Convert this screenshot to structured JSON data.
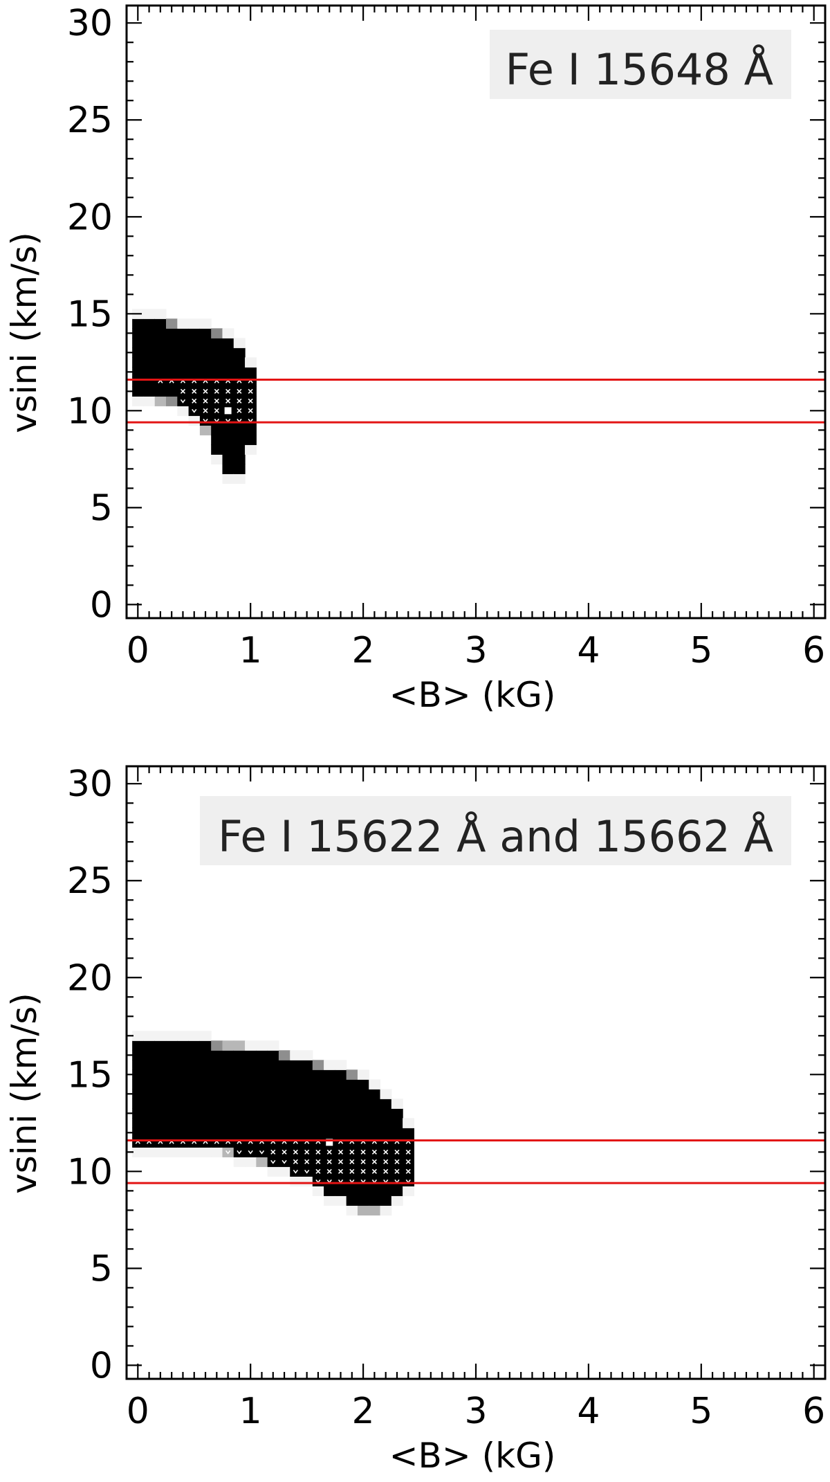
{
  "chart_data": [
    {
      "type": "heatmap",
      "annotation": "Fe I 15648 Å",
      "xlabel": "<B> (kG)",
      "ylabel": "vsini (km/s)",
      "xlim": [
        -0.1,
        6.1
      ],
      "ylim": [
        -0.7,
        30.9
      ],
      "xticks": [
        0,
        1,
        2,
        3,
        4,
        5,
        6
      ],
      "yticks": [
        0,
        5,
        10,
        15,
        20,
        25,
        30
      ],
      "grid": false,
      "cell_size": {
        "dB": 0.1,
        "dv": 0.5
      },
      "reference_lines_vsini": [
        9.4,
        11.6
      ],
      "best_fit": {
        "B": 0.8,
        "vsini": 10.0
      },
      "probability_region": {
        "columns": [
          {
            "B": 0.0,
            "vmin": 11.0,
            "vmax": 14.5,
            "edge": 0.85
          },
          {
            "B": 0.1,
            "vmin": 11.0,
            "vmax": 14.5,
            "edge": 0.85
          },
          {
            "B": 0.2,
            "vmin": 10.8,
            "vmax": 14.5,
            "edge": 0.85
          },
          {
            "B": 0.3,
            "vmin": 10.7,
            "vmax": 14.3,
            "edge": 0.85
          },
          {
            "B": 0.4,
            "vmin": 10.5,
            "vmax": 14.0,
            "edge": 0.85
          },
          {
            "B": 0.5,
            "vmin": 10.0,
            "vmax": 14.0,
            "edge": 0.85
          },
          {
            "B": 0.6,
            "vmin": 9.3,
            "vmax": 14.0,
            "edge": 0.85
          },
          {
            "B": 0.7,
            "vmin": 8.0,
            "vmax": 13.8,
            "edge": 0.9
          },
          {
            "B": 0.8,
            "vmin": 7.0,
            "vmax": 13.5,
            "edge": 0.9
          },
          {
            "B": 0.9,
            "vmin": 7.0,
            "vmax": 13.0,
            "edge": 0.9
          },
          {
            "B": 1.0,
            "vmin": 8.5,
            "vmax": 12.0,
            "edge": 0.9
          }
        ],
        "halo_extent": 0.1
      },
      "marked_cells": [
        {
          "B": 0.2,
          "vmin": 11.5,
          "vmax": 11.5
        },
        {
          "B": 0.3,
          "vmin": 11.5,
          "vmax": 11.5
        },
        {
          "B": 0.4,
          "vmin": 10.5,
          "vmax": 11.5
        },
        {
          "B": 0.5,
          "vmin": 10.0,
          "vmax": 11.5
        },
        {
          "B": 0.6,
          "vmin": 9.5,
          "vmax": 11.5
        },
        {
          "B": 0.7,
          "vmin": 9.5,
          "vmax": 11.5
        },
        {
          "B": 0.8,
          "vmin": 9.5,
          "vmax": 11.5
        },
        {
          "B": 0.9,
          "vmin": 9.5,
          "vmax": 11.5
        },
        {
          "B": 1.0,
          "vmin": 9.5,
          "vmax": 11.5
        }
      ]
    },
    {
      "type": "heatmap",
      "annotation": "Fe I 15622 Å and 15662 Å",
      "xlabel": "<B> (kG)",
      "ylabel": "vsini (km/s)",
      "xlim": [
        -0.1,
        6.1
      ],
      "ylim": [
        -0.7,
        30.9
      ],
      "xticks": [
        0,
        1,
        2,
        3,
        4,
        5,
        6
      ],
      "yticks": [
        0,
        5,
        10,
        15,
        20,
        25,
        30
      ],
      "grid": false,
      "cell_size": {
        "dB": 0.1,
        "dv": 0.5
      },
      "reference_lines_vsini": [
        9.4,
        11.6
      ],
      "best_fit": {
        "B": 1.7,
        "vsini": 11.5
      },
      "probability_region": {
        "columns": [
          {
            "B": 0.0,
            "vmin": 11.5,
            "vmax": 16.5,
            "edge": 0.85
          },
          {
            "B": 0.1,
            "vmin": 11.5,
            "vmax": 16.5,
            "edge": 0.85
          },
          {
            "B": 0.2,
            "vmin": 11.5,
            "vmax": 16.5,
            "edge": 0.85
          },
          {
            "B": 0.3,
            "vmin": 11.5,
            "vmax": 16.5,
            "edge": 0.85
          },
          {
            "B": 0.4,
            "vmin": 11.5,
            "vmax": 16.5,
            "edge": 0.85
          },
          {
            "B": 0.5,
            "vmin": 11.5,
            "vmax": 16.5,
            "edge": 0.85
          },
          {
            "B": 0.6,
            "vmin": 11.5,
            "vmax": 16.5,
            "edge": 0.85
          },
          {
            "B": 0.7,
            "vmin": 11.5,
            "vmax": 16.3,
            "edge": 0.85
          },
          {
            "B": 0.8,
            "vmin": 11.3,
            "vmax": 16.2,
            "edge": 0.85
          },
          {
            "B": 0.9,
            "vmin": 11.0,
            "vmax": 16.2,
            "edge": 0.85
          },
          {
            "B": 1.0,
            "vmin": 11.0,
            "vmax": 16.0,
            "edge": 0.85
          },
          {
            "B": 1.1,
            "vmin": 10.8,
            "vmax": 16.0,
            "edge": 0.85
          },
          {
            "B": 1.2,
            "vmin": 10.5,
            "vmax": 16.0,
            "edge": 0.85
          },
          {
            "B": 1.3,
            "vmin": 10.5,
            "vmax": 15.8,
            "edge": 0.85
          },
          {
            "B": 1.4,
            "vmin": 10.0,
            "vmax": 15.5,
            "edge": 0.85
          },
          {
            "B": 1.5,
            "vmin": 10.0,
            "vmax": 15.5,
            "edge": 0.85
          },
          {
            "B": 1.6,
            "vmin": 9.5,
            "vmax": 15.3,
            "edge": 0.85
          },
          {
            "B": 1.7,
            "vmin": 9.0,
            "vmax": 15.0,
            "edge": 0.85
          },
          {
            "B": 1.8,
            "vmin": 9.0,
            "vmax": 15.0,
            "edge": 0.85
          },
          {
            "B": 1.9,
            "vmin": 8.5,
            "vmax": 14.8,
            "edge": 0.85
          },
          {
            "B": 2.0,
            "vmin": 8.3,
            "vmax": 14.5,
            "edge": 0.9
          },
          {
            "B": 2.1,
            "vmin": 8.3,
            "vmax": 14.0,
            "edge": 0.9
          },
          {
            "B": 2.2,
            "vmin": 8.5,
            "vmax": 13.5,
            "edge": 0.9
          },
          {
            "B": 2.3,
            "vmin": 9.0,
            "vmax": 13.0,
            "edge": 0.9
          },
          {
            "B": 2.4,
            "vmin": 9.5,
            "vmax": 12.0,
            "edge": 0.9
          }
        ],
        "halo_extent": 0.1
      },
      "marked_cells": [
        {
          "B": 0.0,
          "vmin": 11.5,
          "vmax": 11.5
        },
        {
          "B": 0.1,
          "vmin": 11.5,
          "vmax": 11.5
        },
        {
          "B": 0.2,
          "vmin": 11.5,
          "vmax": 11.5
        },
        {
          "B": 0.3,
          "vmin": 11.5,
          "vmax": 11.5
        },
        {
          "B": 0.4,
          "vmin": 11.5,
          "vmax": 11.5
        },
        {
          "B": 0.5,
          "vmin": 11.5,
          "vmax": 11.5
        },
        {
          "B": 0.6,
          "vmin": 11.5,
          "vmax": 11.5
        },
        {
          "B": 0.7,
          "vmin": 11.5,
          "vmax": 11.5
        },
        {
          "B": 0.8,
          "vmin": 11.0,
          "vmax": 11.5
        },
        {
          "B": 0.9,
          "vmin": 11.0,
          "vmax": 11.5
        },
        {
          "B": 1.0,
          "vmin": 11.0,
          "vmax": 11.5
        },
        {
          "B": 1.1,
          "vmin": 11.0,
          "vmax": 11.5
        },
        {
          "B": 1.2,
          "vmin": 10.5,
          "vmax": 11.5
        },
        {
          "B": 1.3,
          "vmin": 10.5,
          "vmax": 11.5
        },
        {
          "B": 1.4,
          "vmin": 10.0,
          "vmax": 11.5
        },
        {
          "B": 1.5,
          "vmin": 10.0,
          "vmax": 11.5
        },
        {
          "B": 1.6,
          "vmin": 9.5,
          "vmax": 11.5
        },
        {
          "B": 1.7,
          "vmin": 9.5,
          "vmax": 11.0
        },
        {
          "B": 1.8,
          "vmin": 9.5,
          "vmax": 11.5
        },
        {
          "B": 1.9,
          "vmin": 9.5,
          "vmax": 11.5
        },
        {
          "B": 2.0,
          "vmin": 9.5,
          "vmax": 11.5
        },
        {
          "B": 2.1,
          "vmin": 9.5,
          "vmax": 11.5
        },
        {
          "B": 2.2,
          "vmin": 9.5,
          "vmax": 11.5
        },
        {
          "B": 2.3,
          "vmin": 9.5,
          "vmax": 11.5
        },
        {
          "B": 2.4,
          "vmin": 9.5,
          "vmax": 11.5
        }
      ]
    }
  ],
  "colors": {
    "reference_line": "#e31414",
    "annotation_background": "#efefef",
    "cell_max": "#000000",
    "marker": "#ffffff",
    "frame": "#000000"
  }
}
